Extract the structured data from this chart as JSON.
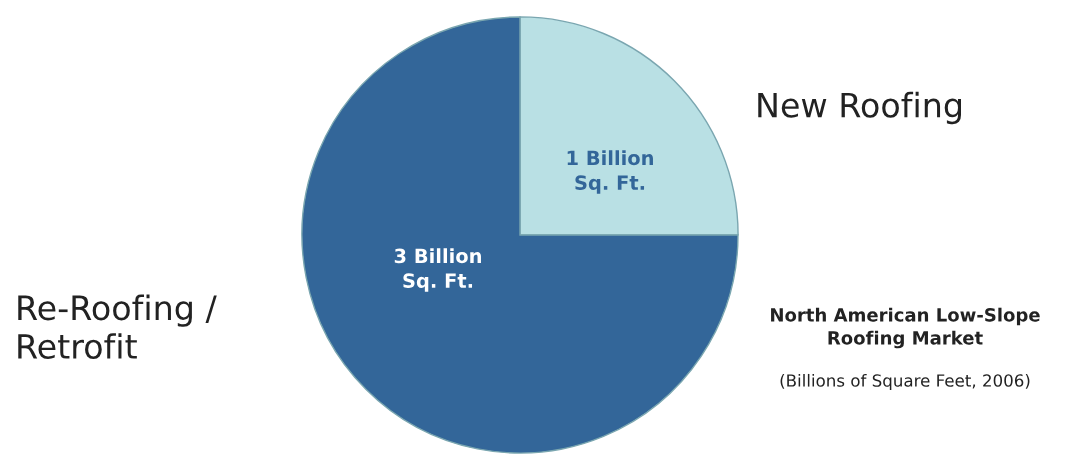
{
  "chart_data": {
    "type": "pie",
    "title": "North American Low-Slope\nRoofing Market",
    "subtitle": "(Billions of Square Feet, 2006)",
    "categories": [
      "New Roofing",
      "Re-Roofing /\nRetrofit"
    ],
    "values": [
      1,
      3
    ],
    "colors": [
      "#b9e0e4",
      "#336699"
    ],
    "value_labels": [
      "1 Billion\nSq. Ft.",
      "3 Billion\nSq. Ft."
    ],
    "legend": false
  }
}
